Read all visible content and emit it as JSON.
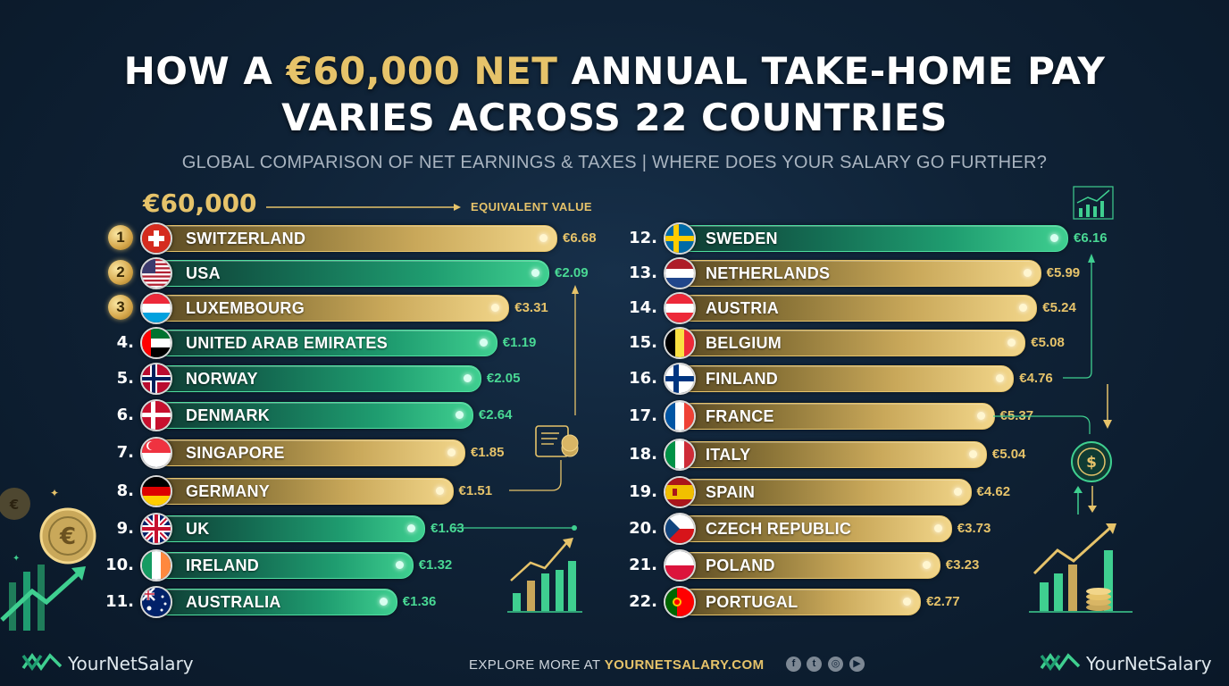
{
  "title": {
    "line1_prefix": "HOW A ",
    "line1_highlight": "€60,000 NET",
    "line1_suffix": " ANNUAL TAKE-HOME PAY",
    "line2": "VARIES ACROSS 22 COUNTRIES"
  },
  "subtitle": "GLOBAL COMPARISON OF NET EARNINGS & TAXES | WHERE DOES YOUR SALARY GO FURTHER?",
  "header": {
    "amount_label": "€60,000",
    "equivalent_label": "EQUIVALENT VALUE"
  },
  "colors": {
    "gold": "#e6c36a",
    "green": "#3fcf90",
    "background": "#0f2236"
  },
  "chart_data": {
    "type": "bar",
    "orientation": "horizontal",
    "title": "HOW A €60,000 NET ANNUAL TAKE-HOME PAY VARIES ACROSS 22 COUNTRIES",
    "value_label": "EQUIVALENT VALUE",
    "rows": [
      {
        "rank": "1",
        "country": "SWITZERLAND",
        "value_label": "€6.68",
        "style": "gold",
        "flag": "switzerland-flag",
        "level": 1.0
      },
      {
        "rank": "2",
        "country": "USA",
        "value_label": "€2.09",
        "style": "green",
        "flag": "usa-flag",
        "level": 0.98
      },
      {
        "rank": "3",
        "country": "LUXEMBOURG",
        "value_label": "€3.31",
        "style": "gold",
        "flag": "luxembourg-flag",
        "level": 0.88
      },
      {
        "rank": "4.",
        "country": "UNITED ARAB EMIRATES",
        "value_label": "€1.19",
        "style": "green",
        "flag": "uae-flag",
        "level": 0.85
      },
      {
        "rank": "5.",
        "country": "NORWAY",
        "value_label": "€2.05",
        "style": "green",
        "flag": "norway-flag",
        "level": 0.81
      },
      {
        "rank": "6.",
        "country": "DENMARK",
        "value_label": "€2.64",
        "style": "green",
        "flag": "denmark-flag",
        "level": 0.79
      },
      {
        "rank": "7.",
        "country": "SINGAPORE",
        "value_label": "€1.85",
        "style": "gold",
        "flag": "singapore-flag",
        "level": 0.77
      },
      {
        "rank": "8.",
        "country": "GERMANY",
        "value_label": "€1.51",
        "style": "gold",
        "flag": "germany-flag",
        "level": 0.74
      },
      {
        "rank": "9.",
        "country": "UK",
        "value_label": "€1.63",
        "style": "green",
        "flag": "uk-flag",
        "level": 0.67
      },
      {
        "rank": "10.",
        "country": "IRELAND",
        "value_label": "€1.32",
        "style": "green",
        "flag": "ireland-flag",
        "level": 0.64
      },
      {
        "rank": "11.",
        "country": "AUSTRALIA",
        "value_label": "€1.36",
        "style": "green",
        "flag": "australia-flag",
        "level": 0.6
      },
      {
        "rank": "12.",
        "country": "SWEDEN",
        "value_label": "€6.16",
        "style": "green",
        "flag": "sweden-flag",
        "level": 1.0
      },
      {
        "rank": "13.",
        "country": "NETHERLANDS",
        "value_label": "€5.99",
        "style": "gold",
        "flag": "netherlands-flag",
        "level": 0.93
      },
      {
        "rank": "14.",
        "country": "AUSTRIA",
        "value_label": "€5.24",
        "style": "gold",
        "flag": "austria-flag",
        "level": 0.92
      },
      {
        "rank": "15.",
        "country": "BELGIUM",
        "value_label": "€5.08",
        "style": "gold",
        "flag": "belgium-flag",
        "level": 0.89
      },
      {
        "rank": "16.",
        "country": "FINLAND",
        "value_label": "€4.76",
        "style": "gold",
        "flag": "finland-flag",
        "level": 0.86
      },
      {
        "rank": "17.",
        "country": "FRANCE",
        "value_label": "€5.37",
        "style": "gold",
        "flag": "france-flag",
        "level": 0.81
      },
      {
        "rank": "18.",
        "country": "ITALY",
        "value_label": "€5.04",
        "style": "gold",
        "flag": "italy-flag",
        "level": 0.79
      },
      {
        "rank": "19.",
        "country": "SPAIN",
        "value_label": "€4.62",
        "style": "gold",
        "flag": "spain-flag",
        "level": 0.75
      },
      {
        "rank": "20.",
        "country": "CZECH REPUBLIC",
        "value_label": "€3.73",
        "style": "gold",
        "flag": "czech-flag",
        "level": 0.7
      },
      {
        "rank": "21.",
        "country": "POLAND",
        "value_label": "€3.23",
        "style": "gold",
        "flag": "poland-flag",
        "level": 0.67
      },
      {
        "rank": "22.",
        "country": "PORTUGAL",
        "value_label": "€2.77",
        "style": "gold",
        "flag": "portugal-flag",
        "level": 0.62
      }
    ]
  },
  "footer": {
    "brand_left": "YourNetSalary",
    "brand_right": "YourNetSalary",
    "explore_prefix": "EXPLORE MORE AT ",
    "explore_url": "YOURNETSALARY.COM",
    "social_icons": [
      "facebook-icon",
      "twitter-icon",
      "instagram-icon",
      "youtube-icon"
    ]
  }
}
